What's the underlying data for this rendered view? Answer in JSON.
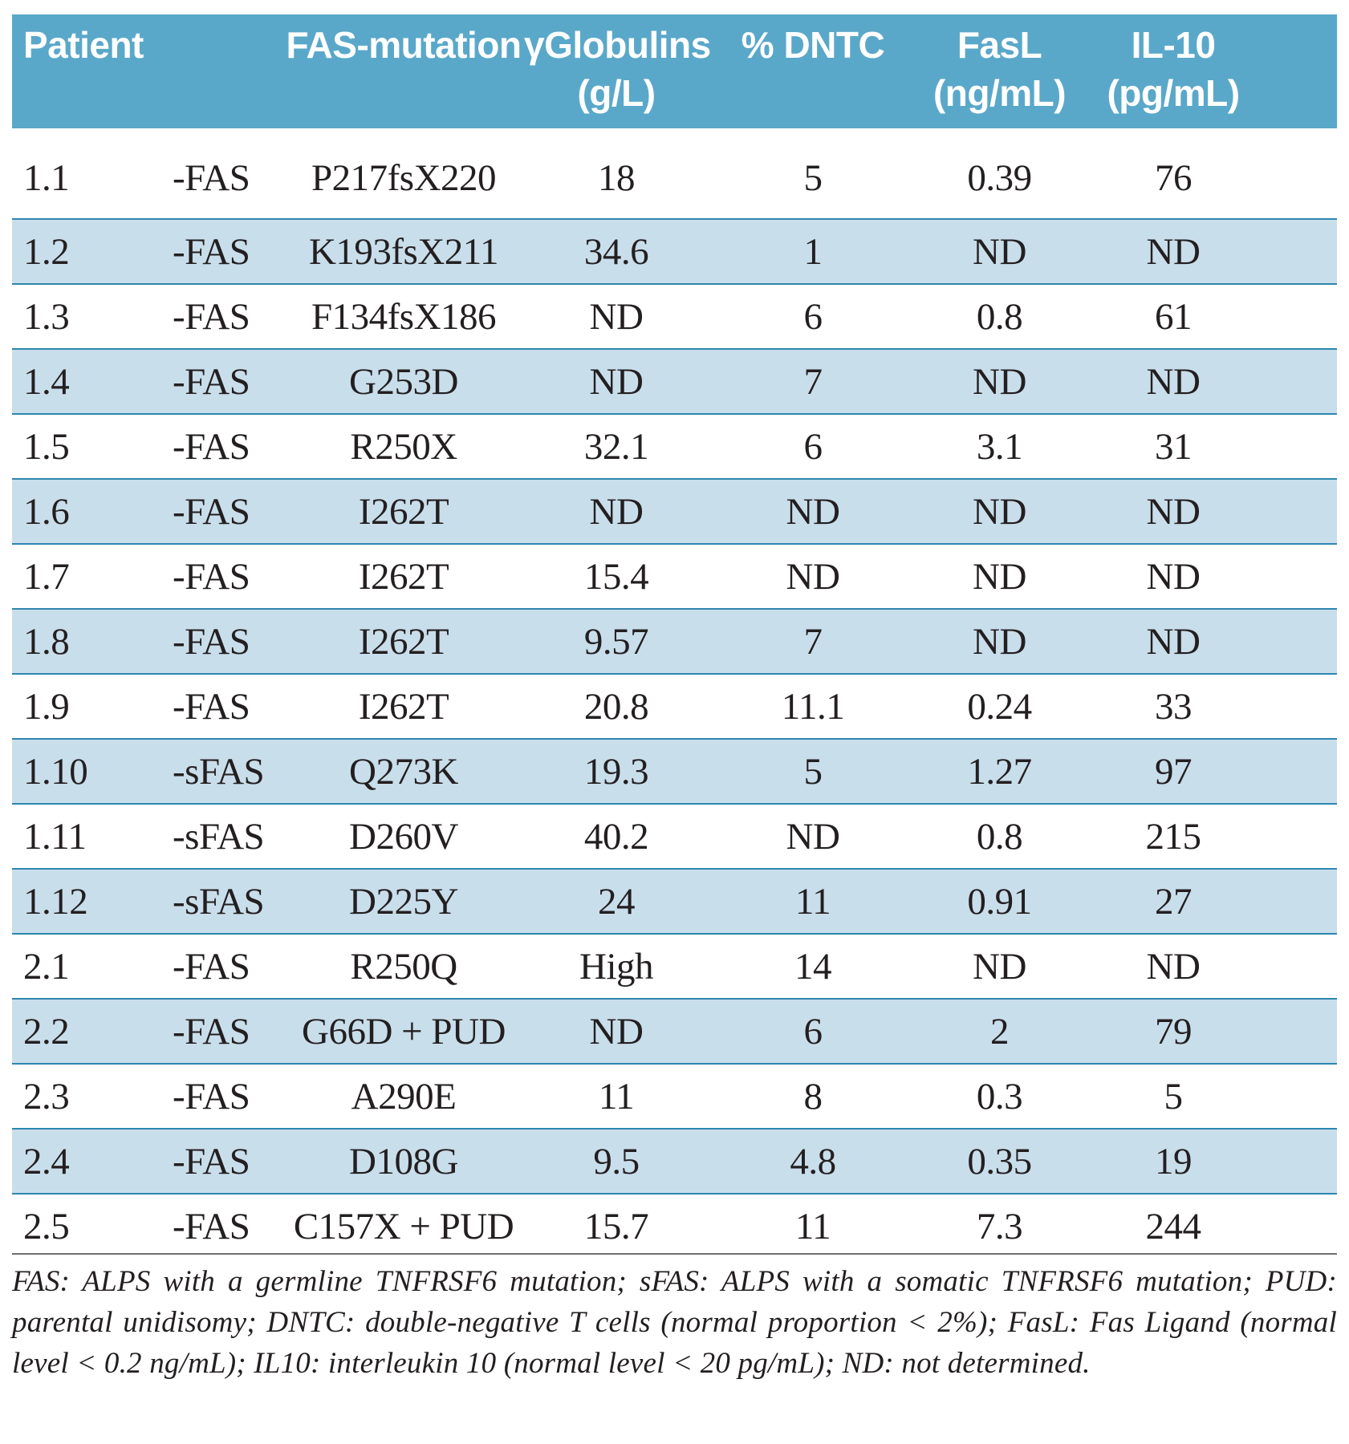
{
  "table": {
    "headers": {
      "patient": "Patient",
      "fas_mutation": "FAS-mutation",
      "globulins_line1": "γGlobulins",
      "globulins_line2": "(g/L)",
      "dntc": "% DNTC",
      "fasl_line1": "FasL",
      "fasl_line2": "(ng/mL)",
      "il10_line1": "IL-10",
      "il10_line2": "(pg/mL)"
    },
    "rows": [
      {
        "patient": "1.1",
        "type": "-FAS",
        "mutation": "P217fsX220",
        "globulins": "18",
        "dntc": "5",
        "fasl": "0.39",
        "il10": "76"
      },
      {
        "patient": "1.2",
        "type": "-FAS",
        "mutation": "K193fsX211",
        "globulins": "34.6",
        "dntc": "1",
        "fasl": "ND",
        "il10": "ND"
      },
      {
        "patient": "1.3",
        "type": "-FAS",
        "mutation": "F134fsX186",
        "globulins": "ND",
        "dntc": "6",
        "fasl": "0.8",
        "il10": "61"
      },
      {
        "patient": "1.4",
        "type": "-FAS",
        "mutation": "G253D",
        "globulins": "ND",
        "dntc": "7",
        "fasl": "ND",
        "il10": "ND"
      },
      {
        "patient": "1.5",
        "type": "-FAS",
        "mutation": "R250X",
        "globulins": "32.1",
        "dntc": "6",
        "fasl": "3.1",
        "il10": "31"
      },
      {
        "patient": "1.6",
        "type": "-FAS",
        "mutation": "I262T",
        "globulins": "ND",
        "dntc": "ND",
        "fasl": "ND",
        "il10": "ND"
      },
      {
        "patient": "1.7",
        "type": "-FAS",
        "mutation": "I262T",
        "globulins": "15.4",
        "dntc": "ND",
        "fasl": "ND",
        "il10": "ND"
      },
      {
        "patient": "1.8",
        "type": "-FAS",
        "mutation": "I262T",
        "globulins": "9.57",
        "dntc": "7",
        "fasl": "ND",
        "il10": "ND"
      },
      {
        "patient": "1.9",
        "type": "-FAS",
        "mutation": "I262T",
        "globulins": "20.8",
        "dntc": "11.1",
        "fasl": "0.24",
        "il10": "33"
      },
      {
        "patient": "1.10",
        "type": "-sFAS",
        "mutation": "Q273K",
        "globulins": "19.3",
        "dntc": "5",
        "fasl": "1.27",
        "il10": "97"
      },
      {
        "patient": "1.11",
        "type": "-sFAS",
        "mutation": "D260V",
        "globulins": "40.2",
        "dntc": "ND",
        "fasl": "0.8",
        "il10": "215"
      },
      {
        "patient": "1.12",
        "type": "-sFAS",
        "mutation": "D225Y",
        "globulins": "24",
        "dntc": "11",
        "fasl": "0.91",
        "il10": "27"
      },
      {
        "patient": "2.1",
        "type": "-FAS",
        "mutation": "R250Q",
        "globulins": "High",
        "dntc": "14",
        "fasl": "ND",
        "il10": "ND"
      },
      {
        "patient": "2.2",
        "type": "-FAS",
        "mutation": "G66D + PUD",
        "globulins": "ND",
        "dntc": "6",
        "fasl": "2",
        "il10": "79"
      },
      {
        "patient": "2.3",
        "type": "-FAS",
        "mutation": "A290E",
        "globulins": "11",
        "dntc": "8",
        "fasl": "0.3",
        "il10": "5"
      },
      {
        "patient": "2.4",
        "type": "-FAS",
        "mutation": "D108G",
        "globulins": "9.5",
        "dntc": "4.8",
        "fasl": "0.35",
        "il10": "19"
      },
      {
        "patient": "2.5",
        "type": "-FAS",
        "mutation": "C157X + PUD",
        "globulins": "15.7",
        "dntc": "11",
        "fasl": "7.3",
        "il10": "244"
      }
    ]
  },
  "footnote": "FAS: ALPS with a germline TNFRSF6 mutation; sFAS: ALPS with a somatic TNFRSF6 mutation; PUD: parental unidisomy; DNTC: double-negative T cells (normal proportion < 2%); FasL: Fas Ligand (normal level < 0.2 ng/mL); IL10: interleukin 10 (normal level < 20 pg/mL); ND: not determined.",
  "colors": {
    "header_bg": "#5aa8c9",
    "shaded_row_bg": "#c9deeb",
    "row_rule": "#2e86b0"
  }
}
